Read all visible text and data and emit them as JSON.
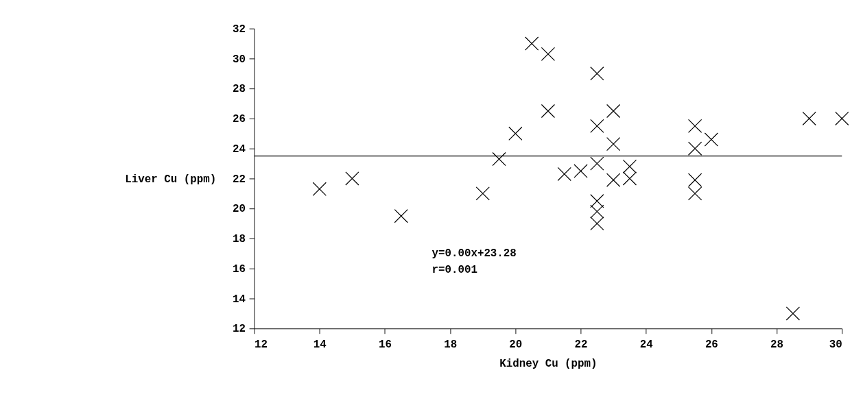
{
  "chart_data": {
    "type": "scatter",
    "xlabel": "Kidney Cu (ppm)",
    "ylabel": "Liver Cu (ppm)",
    "xlim": [
      12,
      30
    ],
    "xticks": [
      12,
      14,
      16,
      18,
      20,
      22,
      24,
      26,
      28,
      30
    ],
    "ylim": [
      12,
      32
    ],
    "yticks": [
      12,
      14,
      16,
      18,
      20,
      22,
      24,
      26,
      28,
      30,
      32
    ],
    "grid": false,
    "marker": "cross",
    "series": [
      {
        "color": "#000000",
        "x": [
          14,
          15,
          16.5,
          19,
          19.5,
          20,
          20.5,
          21,
          21,
          21.5,
          22,
          22.5,
          22.5,
          22.5,
          22.5,
          22.5,
          22.5,
          23,
          23,
          23,
          23.5,
          23.5,
          25.5,
          25.5,
          25.5,
          25.5,
          26,
          28.5,
          29,
          30
        ],
        "values": [
          21.3,
          22,
          19.5,
          21,
          23.3,
          25,
          31,
          30.3,
          26.5,
          22.3,
          22.5,
          29,
          25.5,
          23,
          20.5,
          19.8,
          19,
          26.5,
          24.3,
          21.9,
          22,
          22.8,
          25.5,
          24,
          21.9,
          21,
          24.6,
          13,
          26,
          26
        ]
      },
      {
        "type": "line",
        "marker": "none",
        "color": "#000000",
        "x": [
          12,
          30
        ],
        "values": [
          23.5,
          23.5
        ]
      }
    ],
    "annotations": [
      "y=0.00x+23.28",
      "r=0.001"
    ]
  }
}
